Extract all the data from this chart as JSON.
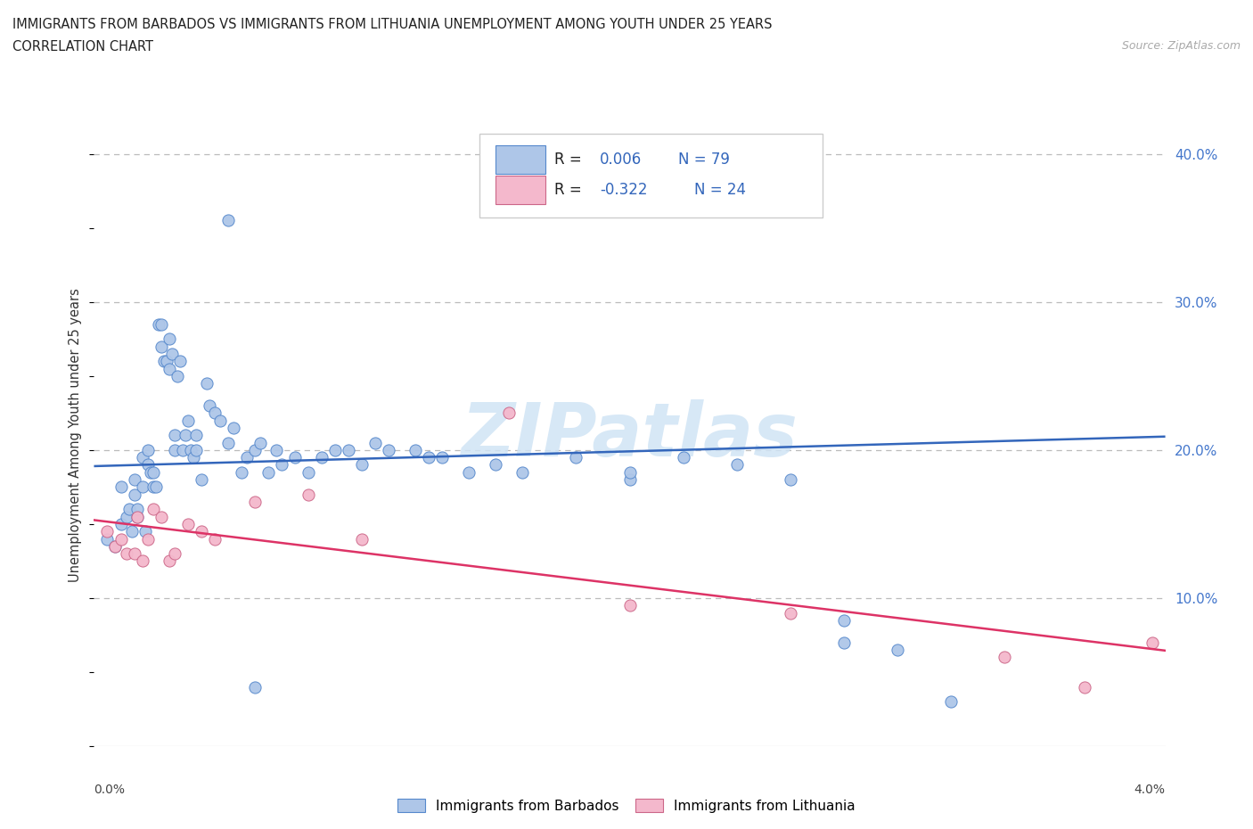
{
  "title_line1": "IMMIGRANTS FROM BARBADOS VS IMMIGRANTS FROM LITHUANIA UNEMPLOYMENT AMONG YOUTH UNDER 25 YEARS",
  "title_line2": "CORRELATION CHART",
  "source": "Source: ZipAtlas.com",
  "ylabel": "Unemployment Among Youth under 25 years",
  "xlim": [
    0.0,
    0.04
  ],
  "ylim": [
    0.0,
    0.42
  ],
  "yticks": [
    0.1,
    0.2,
    0.3,
    0.4
  ],
  "ytick_labels": [
    "10.0%",
    "20.0%",
    "30.0%",
    "40.0%"
  ],
  "xtick_left": "0.0%",
  "xtick_right": "4.0%",
  "barbados_color": "#aec6e8",
  "barbados_edge": "#5588cc",
  "lithuania_color": "#f4b8cc",
  "lithuania_edge": "#cc6688",
  "trend_barbados_color": "#3366bb",
  "trend_lithuania_color": "#dd3366",
  "legend_R_color": "#3366bb",
  "watermark": "ZIPatlas",
  "watermark_color": "#d0e4f5",
  "barbados_x": [
    0.0005,
    0.0008,
    0.001,
    0.001,
    0.0012,
    0.0013,
    0.0014,
    0.0015,
    0.0015,
    0.0016,
    0.0016,
    0.0018,
    0.0018,
    0.0019,
    0.002,
    0.002,
    0.0021,
    0.0022,
    0.0022,
    0.0023,
    0.0024,
    0.0025,
    0.0025,
    0.0026,
    0.0027,
    0.0028,
    0.0028,
    0.0029,
    0.003,
    0.003,
    0.0031,
    0.0032,
    0.0033,
    0.0034,
    0.0035,
    0.0036,
    0.0037,
    0.0038,
    0.0038,
    0.004,
    0.0042,
    0.0043,
    0.0045,
    0.0047,
    0.005,
    0.0052,
    0.0055,
    0.0057,
    0.006,
    0.0062,
    0.0065,
    0.0068,
    0.007,
    0.0075,
    0.008,
    0.0085,
    0.009,
    0.0095,
    0.01,
    0.0105,
    0.011,
    0.012,
    0.0125,
    0.013,
    0.014,
    0.015,
    0.016,
    0.018,
    0.02,
    0.022,
    0.024,
    0.026,
    0.028,
    0.03,
    0.032,
    0.02,
    0.028,
    0.005,
    0.006
  ],
  "barbados_y": [
    0.14,
    0.135,
    0.15,
    0.175,
    0.155,
    0.16,
    0.145,
    0.18,
    0.17,
    0.155,
    0.16,
    0.195,
    0.175,
    0.145,
    0.2,
    0.19,
    0.185,
    0.175,
    0.185,
    0.175,
    0.285,
    0.285,
    0.27,
    0.26,
    0.26,
    0.275,
    0.255,
    0.265,
    0.21,
    0.2,
    0.25,
    0.26,
    0.2,
    0.21,
    0.22,
    0.2,
    0.195,
    0.2,
    0.21,
    0.18,
    0.245,
    0.23,
    0.225,
    0.22,
    0.205,
    0.215,
    0.185,
    0.195,
    0.2,
    0.205,
    0.185,
    0.2,
    0.19,
    0.195,
    0.185,
    0.195,
    0.2,
    0.2,
    0.19,
    0.205,
    0.2,
    0.2,
    0.195,
    0.195,
    0.185,
    0.19,
    0.185,
    0.195,
    0.18,
    0.195,
    0.19,
    0.18,
    0.07,
    0.065,
    0.03,
    0.185,
    0.085,
    0.355,
    0.04
  ],
  "lithuania_x": [
    0.0005,
    0.0008,
    0.001,
    0.0012,
    0.0015,
    0.0016,
    0.0018,
    0.002,
    0.0022,
    0.0025,
    0.0028,
    0.003,
    0.0035,
    0.004,
    0.0045,
    0.006,
    0.008,
    0.01,
    0.0155,
    0.02,
    0.026,
    0.034,
    0.037,
    0.0395
  ],
  "lithuania_y": [
    0.145,
    0.135,
    0.14,
    0.13,
    0.13,
    0.155,
    0.125,
    0.14,
    0.16,
    0.155,
    0.125,
    0.13,
    0.15,
    0.145,
    0.14,
    0.165,
    0.17,
    0.14,
    0.225,
    0.095,
    0.09,
    0.06,
    0.04,
    0.07
  ]
}
